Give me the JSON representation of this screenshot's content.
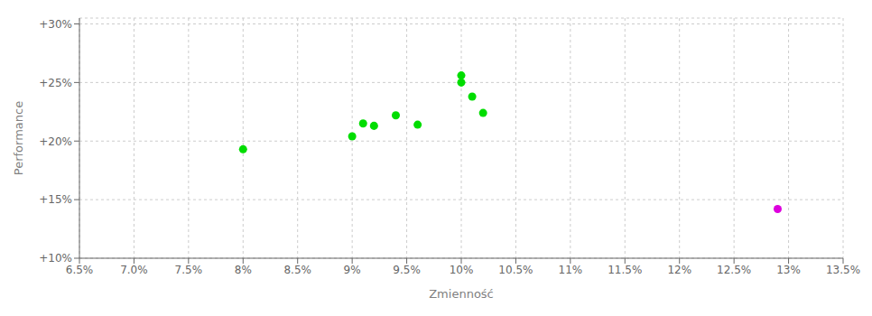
{
  "chart_data": {
    "type": "scatter",
    "xlabel": "Zmienność",
    "ylabel": "Performance",
    "xlim": [
      0.065,
      0.135
    ],
    "ylim": [
      0.1,
      0.305
    ],
    "xticks": [
      {
        "value": 0.065,
        "label": "6.5%"
      },
      {
        "value": 0.07,
        "label": "7.0%"
      },
      {
        "value": 0.075,
        "label": "7.5%"
      },
      {
        "value": 0.08,
        "label": "8%"
      },
      {
        "value": 0.085,
        "label": "8.5%"
      },
      {
        "value": 0.09,
        "label": "9%"
      },
      {
        "value": 0.095,
        "label": "9.5%"
      },
      {
        "value": 0.1,
        "label": "10%"
      },
      {
        "value": 0.105,
        "label": "10.5%"
      },
      {
        "value": 0.11,
        "label": "11%"
      },
      {
        "value": 0.115,
        "label": "11.5%"
      },
      {
        "value": 0.12,
        "label": "12%"
      },
      {
        "value": 0.125,
        "label": "12.5%"
      },
      {
        "value": 0.13,
        "label": "13%"
      },
      {
        "value": 0.135,
        "label": "13.5%"
      }
    ],
    "yticks": [
      {
        "value": 0.1,
        "label": "+10%"
      },
      {
        "value": 0.15,
        "label": "+15%"
      },
      {
        "value": 0.2,
        "label": "+20%"
      },
      {
        "value": 0.25,
        "label": "+25%"
      },
      {
        "value": 0.3,
        "label": "+30%"
      }
    ],
    "grid": true,
    "series": [
      {
        "color": "#00dd00",
        "x": [
          0.08,
          0.09,
          0.091,
          0.092,
          0.094,
          0.096,
          0.1,
          0.1,
          0.101,
          0.102
        ],
        "values": [
          0.193,
          0.204,
          0.215,
          0.213,
          0.222,
          0.214,
          0.256,
          0.25,
          0.238,
          0.224
        ]
      },
      {
        "color": "#dd00dd",
        "x": [
          0.129
        ],
        "values": [
          0.142
        ]
      }
    ]
  }
}
